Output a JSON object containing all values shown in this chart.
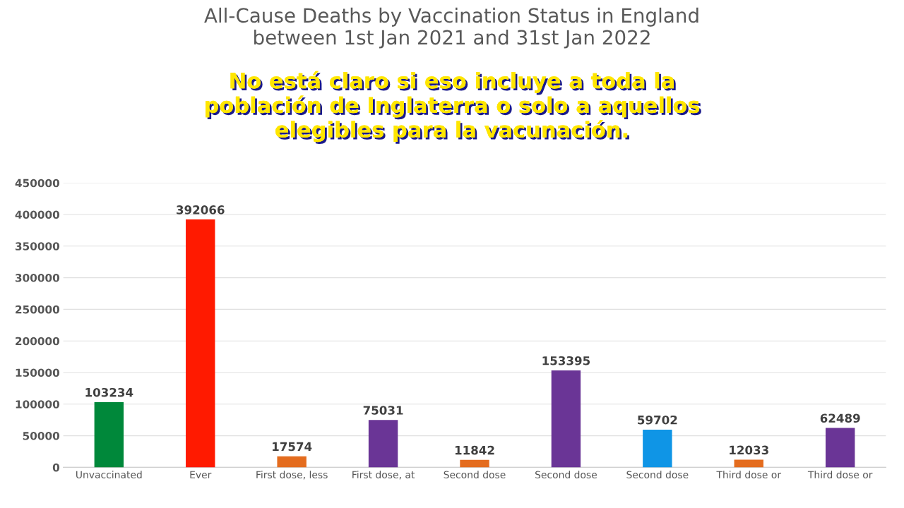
{
  "chart_data": {
    "type": "bar",
    "title": "All-Cause Deaths by Vaccination Status in England\nbetween 1st Jan 2021 and 31st Jan 2022",
    "annotations": [
      "No está claro si eso incluye a toda la\npoblación de Inglaterra o solo a aquellos\nelegibles para la vacunación."
    ],
    "categories": [
      "Unvaccinated",
      "Ever",
      "First dose, less",
      "First dose, at",
      "Second dose",
      "Second dose",
      "Second dose",
      "Third dose or",
      "Third dose or"
    ],
    "values": [
      103234,
      392066,
      17574,
      75031,
      11842,
      153395,
      59702,
      12033,
      62489
    ],
    "colors": [
      "#00883a",
      "#ff1a00",
      "#e46c1e",
      "#6a3596",
      "#e46c1e",
      "#6a3596",
      "#0f95e6",
      "#e46c1e",
      "#6a3596"
    ],
    "ylim": [
      0,
      450000
    ],
    "yticks": [
      0,
      50000,
      100000,
      150000,
      200000,
      250000,
      300000,
      350000,
      400000,
      450000
    ],
    "grid": "y",
    "data_labels": true
  }
}
